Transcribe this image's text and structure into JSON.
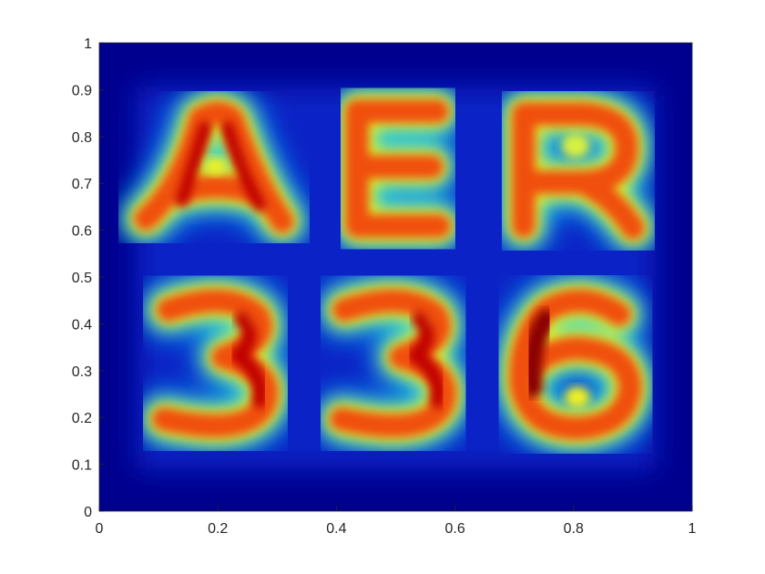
{
  "chart_data": {
    "type": "heatmap",
    "title": "",
    "xlabel": "",
    "ylabel": "",
    "xlim": [
      0,
      1
    ],
    "ylim": [
      0,
      1
    ],
    "x_ticks": [
      "0",
      "0.2",
      "0.4",
      "0.6",
      "0.8",
      "1"
    ],
    "y_ticks": [
      "0",
      "0.1",
      "0.2",
      "0.3",
      "0.4",
      "0.5",
      "0.6",
      "0.7",
      "0.8",
      "0.9",
      "1"
    ],
    "colormap": "jet",
    "grid": false,
    "legend": "none",
    "depicted_text": [
      "AER",
      "336"
    ]
  }
}
